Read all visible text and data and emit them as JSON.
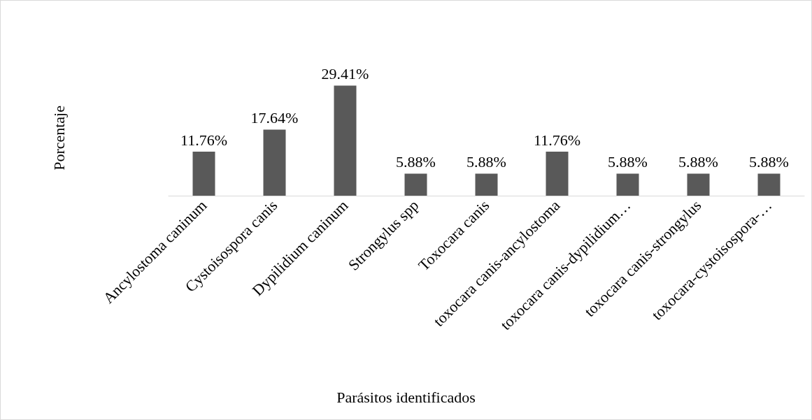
{
  "chart_data": {
    "type": "bar",
    "xlabel": "Parásitos identificados",
    "ylabel": "Porcentaje",
    "categories": [
      "Ancylostoma caninum",
      "Cystoisospora canis",
      "Dypilidium caninum",
      "Strongylus spp",
      "Toxocara canis",
      "toxocara canis-ancylostoma",
      "toxocara canis-dypilidium…",
      "toxocara canis-strongylus",
      "toxocara-cystoisospora-…"
    ],
    "values": [
      11.76,
      17.64,
      29.41,
      5.88,
      5.88,
      11.76,
      5.88,
      5.88,
      5.88
    ],
    "value_labels": [
      "11.76%",
      "17.64%",
      "29.41%",
      "5.88%",
      "5.88%",
      "11.76%",
      "5.88%",
      "5.88%",
      "5.88%"
    ],
    "color": "#595959"
  }
}
